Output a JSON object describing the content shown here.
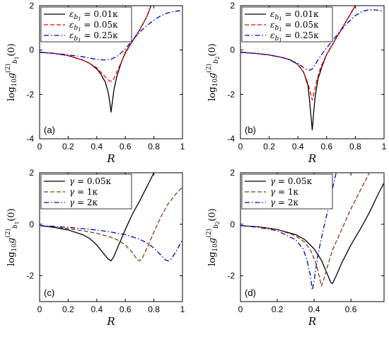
{
  "chart_data": [
    {
      "type": "line",
      "panel_label": "(a)",
      "xlabel": "R",
      "ylabel": "log10 g(2) b1 (0)",
      "ylabel_parts": {
        "pre": "log",
        "sub10": "10",
        "g": "g",
        "sup": "(2)",
        "subb": "b",
        "subsub": "1",
        "post": "(0)"
      },
      "xlim": [
        0,
        1
      ],
      "ylim": [
        -4,
        2
      ],
      "xticks": [
        "0",
        "0.2",
        "0.4",
        "0.6",
        "0.8",
        "1"
      ],
      "yticks": [
        "-4",
        "-2",
        "0",
        "2"
      ],
      "legend_position": "top-left",
      "series": [
        {
          "name": "ε_b1 = 0.01κ",
          "legend": {
            "sym": "ε",
            "sub": "b",
            "subsub": "1",
            "rhs": " = 0.01κ"
          },
          "color": "#000000",
          "dash": "solid",
          "x": [
            0,
            0.1,
            0.2,
            0.3,
            0.35,
            0.4,
            0.43,
            0.46,
            0.48,
            0.49,
            0.5,
            0.51,
            0.52,
            0.54,
            0.57,
            0.6,
            0.65,
            0.7,
            0.75,
            0.78
          ],
          "y": [
            -0.1,
            -0.15,
            -0.25,
            -0.45,
            -0.6,
            -0.85,
            -1.1,
            -1.45,
            -1.9,
            -2.3,
            -2.8,
            -2.3,
            -1.8,
            -1.2,
            -0.6,
            -0.1,
            0.4,
            0.9,
            1.5,
            2.0
          ]
        },
        {
          "name": "ε_b1 = 0.05κ",
          "legend": {
            "sym": "ε",
            "sub": "b",
            "subsub": "1",
            "rhs": " = 0.05κ"
          },
          "color": "#ff0000",
          "dash": "dashed",
          "x": [
            0,
            0.1,
            0.2,
            0.3,
            0.35,
            0.4,
            0.45,
            0.48,
            0.5,
            0.52,
            0.55,
            0.6,
            0.65,
            0.7,
            0.75,
            0.78
          ],
          "y": [
            -0.1,
            -0.15,
            -0.25,
            -0.45,
            -0.6,
            -0.8,
            -1.15,
            -1.35,
            -1.42,
            -1.3,
            -0.85,
            -0.15,
            0.4,
            0.9,
            1.5,
            2.0
          ]
        },
        {
          "name": "ε_b1 = 0.25κ",
          "legend": {
            "sym": "ε",
            "sub": "b",
            "subsub": "1",
            "rhs": " = 0.25κ"
          },
          "color": "#0000cc",
          "dash": "dashdot",
          "x": [
            0,
            0.1,
            0.2,
            0.3,
            0.4,
            0.45,
            0.5,
            0.55,
            0.6,
            0.65,
            0.7,
            0.75,
            0.8,
            0.85,
            0.9,
            0.95,
            1.0
          ],
          "y": [
            -0.1,
            -0.15,
            -0.22,
            -0.3,
            -0.42,
            -0.45,
            -0.42,
            -0.25,
            0.05,
            0.45,
            0.8,
            1.1,
            1.35,
            1.55,
            1.68,
            1.75,
            1.78
          ]
        }
      ]
    },
    {
      "type": "line",
      "panel_label": "(b)",
      "xlabel": "R",
      "ylabel": "log10 g(2) b2 (0)",
      "ylabel_parts": {
        "pre": "log",
        "sub10": "10",
        "g": "g",
        "sup": "(2)",
        "subb": "b",
        "subsub": "2",
        "post": "(0)"
      },
      "xlim": [
        0,
        1
      ],
      "ylim": [
        -4,
        2
      ],
      "xticks": [
        "0",
        "0.2",
        "0.4",
        "0.6",
        "0.8",
        "1"
      ],
      "yticks": [
        "-4",
        "-2",
        "0",
        "2"
      ],
      "legend_position": "top-left",
      "series": [
        {
          "name": "ε_b1 = 0.01κ",
          "legend": {
            "sym": "ε",
            "sub": "b",
            "subsub": "1",
            "rhs": " = 0.01κ"
          },
          "color": "#000000",
          "dash": "solid",
          "x": [
            0,
            0.1,
            0.2,
            0.3,
            0.35,
            0.4,
            0.44,
            0.47,
            0.48,
            0.49,
            0.5,
            0.51,
            0.52,
            0.54,
            0.57,
            0.6,
            0.65,
            0.7,
            0.75,
            0.8
          ],
          "y": [
            -0.1,
            -0.15,
            -0.22,
            -0.35,
            -0.45,
            -0.65,
            -1.0,
            -1.6,
            -2.2,
            -2.9,
            -3.6,
            -2.8,
            -2.1,
            -1.3,
            -0.7,
            -0.2,
            0.35,
            0.9,
            1.45,
            2.0
          ]
        },
        {
          "name": "ε_b1 = 0.05κ",
          "legend": {
            "sym": "ε",
            "sub": "b",
            "subsub": "1",
            "rhs": " = 0.05κ"
          },
          "color": "#ff0000",
          "dash": "dashed",
          "x": [
            0,
            0.1,
            0.2,
            0.3,
            0.35,
            0.4,
            0.44,
            0.47,
            0.49,
            0.5,
            0.51,
            0.53,
            0.56,
            0.6,
            0.65,
            0.7,
            0.75,
            0.8
          ],
          "y": [
            -0.1,
            -0.15,
            -0.22,
            -0.35,
            -0.45,
            -0.65,
            -1.0,
            -1.5,
            -2.0,
            -2.25,
            -2.0,
            -1.4,
            -0.75,
            -0.2,
            0.35,
            0.9,
            1.45,
            2.0
          ]
        },
        {
          "name": "ε_b1 = 0.25κ",
          "legend": {
            "sym": "ε",
            "sub": "b",
            "subsub": "1",
            "rhs": " = 0.25κ"
          },
          "color": "#0000cc",
          "dash": "dashdot",
          "x": [
            0,
            0.1,
            0.2,
            0.3,
            0.4,
            0.45,
            0.48,
            0.5,
            0.53,
            0.56,
            0.6,
            0.65,
            0.7,
            0.75,
            0.8,
            0.85,
            0.9,
            0.95,
            1.0
          ],
          "y": [
            -0.1,
            -0.15,
            -0.22,
            -0.35,
            -0.6,
            -0.85,
            -0.92,
            -0.85,
            -0.55,
            -0.25,
            0.1,
            0.5,
            0.9,
            1.25,
            1.55,
            1.75,
            1.82,
            1.8,
            1.75
          ]
        }
      ]
    },
    {
      "type": "line",
      "panel_label": "(c)",
      "xlabel": "R",
      "ylabel": "log10 g(2) b1 (0)",
      "ylabel_parts": {
        "pre": "log",
        "sub10": "10",
        "g": "g",
        "sup": "(2)",
        "subb": "b",
        "subsub": "1",
        "post": "(0)"
      },
      "xlim": [
        0,
        1
      ],
      "ylim": [
        -3,
        2
      ],
      "xticks": [
        "0",
        "0.2",
        "0.4",
        "0.6",
        "0.8",
        "1"
      ],
      "yticks": [
        "-2",
        "0",
        "2"
      ],
      "legend_position": "top-left",
      "series": [
        {
          "name": "γ = 0.05κ",
          "legend": {
            "sym": "γ",
            "sub": "",
            "subsub": "",
            "rhs": " = 0.05κ"
          },
          "color": "#000000",
          "dash": "solid",
          "x": [
            0,
            0.1,
            0.2,
            0.3,
            0.35,
            0.4,
            0.45,
            0.48,
            0.5,
            0.52,
            0.55,
            0.6,
            0.65,
            0.7,
            0.75,
            0.8
          ],
          "y": [
            -0.05,
            -0.12,
            -0.22,
            -0.4,
            -0.55,
            -0.8,
            -1.15,
            -1.35,
            -1.42,
            -1.25,
            -0.85,
            -0.2,
            0.4,
            0.9,
            1.45,
            2.0
          ]
        },
        {
          "name": "γ = 1κ",
          "legend": {
            "sym": "γ",
            "sub": "",
            "subsub": "",
            "rhs": " = 1κ"
          },
          "color": "#8b3a0f",
          "dash": "dashed",
          "x": [
            0,
            0.1,
            0.2,
            0.3,
            0.4,
            0.5,
            0.55,
            0.6,
            0.65,
            0.68,
            0.7,
            0.72,
            0.75,
            0.8,
            0.85,
            0.9,
            0.95,
            1.0
          ],
          "y": [
            -0.05,
            -0.1,
            -0.17,
            -0.25,
            -0.35,
            -0.5,
            -0.62,
            -0.8,
            -1.1,
            -1.35,
            -1.42,
            -1.3,
            -0.95,
            -0.3,
            0.3,
            0.8,
            1.15,
            1.45
          ]
        },
        {
          "name": "γ = 2κ",
          "legend": {
            "sym": "γ",
            "sub": "",
            "subsub": "",
            "rhs": " = 2κ"
          },
          "color": "#0000cc",
          "dash": "dashdot",
          "x": [
            0,
            0.1,
            0.2,
            0.3,
            0.4,
            0.5,
            0.6,
            0.7,
            0.75,
            0.8,
            0.85,
            0.88,
            0.9,
            0.92,
            0.95,
            0.98,
            1.0
          ],
          "y": [
            -0.05,
            -0.08,
            -0.12,
            -0.17,
            -0.22,
            -0.3,
            -0.4,
            -0.58,
            -0.72,
            -0.92,
            -1.2,
            -1.38,
            -1.42,
            -1.35,
            -1.1,
            -0.8,
            -0.6
          ]
        }
      ]
    },
    {
      "type": "line",
      "panel_label": "(d)",
      "xlabel": "R",
      "ylabel": "log10 g(2) b2 (0)",
      "ylabel_parts": {
        "pre": "log",
        "sub10": "10",
        "g": "g",
        "sup": "(2)",
        "subb": "b",
        "subsub": "2",
        "post": "(0)"
      },
      "xlim": [
        0,
        0.78
      ],
      "ylim": [
        -3,
        2
      ],
      "xticks": [
        "0",
        "0.2",
        "0.4",
        "0.6"
      ],
      "xtick_values": [
        0,
        0.2,
        0.4,
        0.6
      ],
      "yticks": [
        "-2",
        "0",
        "2"
      ],
      "legend_position": "top-left",
      "series": [
        {
          "name": "γ = 0.05κ",
          "legend": {
            "sym": "γ",
            "sub": "",
            "subsub": "",
            "rhs": " = 0.05κ"
          },
          "color": "#000000",
          "dash": "solid",
          "x": [
            0,
            0.1,
            0.2,
            0.3,
            0.35,
            0.4,
            0.44,
            0.47,
            0.49,
            0.5,
            0.52,
            0.55,
            0.6,
            0.65,
            0.7,
            0.75,
            0.78
          ],
          "y": [
            -0.05,
            -0.1,
            -0.2,
            -0.4,
            -0.6,
            -0.95,
            -1.4,
            -1.9,
            -2.25,
            -2.3,
            -2.0,
            -1.5,
            -0.8,
            -0.2,
            0.45,
            1.2,
            1.6
          ]
        },
        {
          "name": "γ = 1κ",
          "legend": {
            "sym": "γ",
            "sub": "",
            "subsub": "",
            "rhs": " = 1κ"
          },
          "color": "#8b3a0f",
          "dash": "dashed",
          "x": [
            0,
            0.1,
            0.2,
            0.3,
            0.35,
            0.38,
            0.41,
            0.43,
            0.44,
            0.45,
            0.47,
            0.5,
            0.55,
            0.6,
            0.65,
            0.7
          ],
          "y": [
            -0.05,
            -0.1,
            -0.2,
            -0.45,
            -0.7,
            -1.0,
            -1.5,
            -2.1,
            -2.4,
            -2.2,
            -1.7,
            -1.0,
            -0.2,
            0.6,
            1.3,
            2.0
          ]
        },
        {
          "name": "γ = 2κ",
          "legend": {
            "sym": "γ",
            "sub": "",
            "subsub": "",
            "rhs": " = 2κ"
          },
          "color": "#0000cc",
          "dash": "dashdot",
          "x": [
            0,
            0.1,
            0.2,
            0.3,
            0.34,
            0.36,
            0.38,
            0.39,
            0.4,
            0.42,
            0.45,
            0.48,
            0.5,
            0.52
          ],
          "y": [
            -0.05,
            -0.12,
            -0.25,
            -0.6,
            -0.95,
            -1.35,
            -2.0,
            -2.55,
            -2.2,
            -1.2,
            -0.2,
            0.7,
            1.4,
            2.0
          ]
        }
      ]
    }
  ]
}
